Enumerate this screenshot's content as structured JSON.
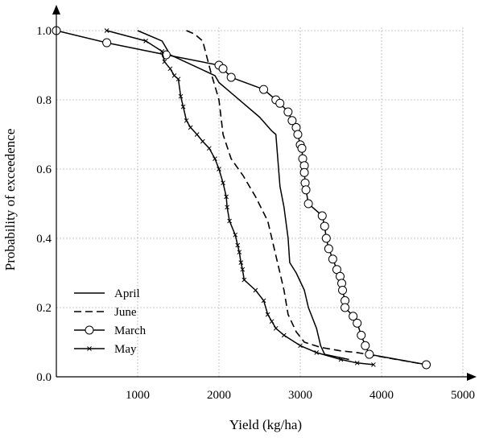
{
  "chart_data": {
    "type": "line",
    "title": "",
    "xlabel": "Yield (kg/ha)",
    "ylabel": "Probability of exceedence",
    "xlim": [
      0,
      5000
    ],
    "ylim": [
      0,
      1.0
    ],
    "x_ticks": [
      "1000",
      "2000",
      "3000",
      "4000",
      "5000"
    ],
    "y_ticks": [
      "0.0",
      "0.2",
      "0.4",
      "0.6",
      "0.8",
      "1.0"
    ],
    "grid": "dotted",
    "legend_position": "bottom-left",
    "series": [
      {
        "name": "April",
        "line_style": "solid",
        "marker": "none",
        "points": [
          [
            1000,
            1.0
          ],
          [
            1300,
            0.97
          ],
          [
            1400,
            0.93
          ],
          [
            1950,
            0.87
          ],
          [
            2000,
            0.85
          ],
          [
            2100,
            0.83
          ],
          [
            2300,
            0.79
          ],
          [
            2500,
            0.75
          ],
          [
            2650,
            0.71
          ],
          [
            2700,
            0.7
          ],
          [
            2750,
            0.55
          ],
          [
            2800,
            0.49
          ],
          [
            2850,
            0.4
          ],
          [
            2870,
            0.33
          ],
          [
            2950,
            0.3
          ],
          [
            3050,
            0.25
          ],
          [
            3100,
            0.2
          ],
          [
            3200,
            0.14
          ],
          [
            3250,
            0.09
          ],
          [
            3300,
            0.065
          ],
          [
            3400,
            0.06
          ],
          [
            3600,
            0.05
          ]
        ]
      },
      {
        "name": "June",
        "line_style": "dashed",
        "marker": "none",
        "points": [
          [
            1600,
            1.0
          ],
          [
            1700,
            0.99
          ],
          [
            1800,
            0.97
          ],
          [
            1900,
            0.88
          ],
          [
            2000,
            0.8
          ],
          [
            2050,
            0.7
          ],
          [
            2150,
            0.63
          ],
          [
            2300,
            0.58
          ],
          [
            2450,
            0.52
          ],
          [
            2600,
            0.45
          ],
          [
            2650,
            0.4
          ],
          [
            2700,
            0.35
          ],
          [
            2750,
            0.3
          ],
          [
            2800,
            0.25
          ],
          [
            2850,
            0.18
          ],
          [
            2950,
            0.13
          ],
          [
            3050,
            0.1
          ],
          [
            3250,
            0.085
          ],
          [
            3500,
            0.075
          ],
          [
            3700,
            0.07
          ],
          [
            4550,
            0.035
          ]
        ]
      },
      {
        "name": "March",
        "line_style": "solid",
        "marker": "circle",
        "points": [
          [
            0,
            1.0
          ],
          [
            620,
            0.965
          ],
          [
            1350,
            0.93
          ],
          [
            2000,
            0.9
          ],
          [
            2050,
            0.89
          ],
          [
            2150,
            0.865
          ],
          [
            2550,
            0.83
          ],
          [
            2700,
            0.8
          ],
          [
            2750,
            0.79
          ],
          [
            2850,
            0.765
          ],
          [
            2900,
            0.74
          ],
          [
            2950,
            0.72
          ],
          [
            2970,
            0.7
          ],
          [
            3000,
            0.67
          ],
          [
            3020,
            0.66
          ],
          [
            3030,
            0.63
          ],
          [
            3050,
            0.61
          ],
          [
            3050,
            0.59
          ],
          [
            3060,
            0.56
          ],
          [
            3070,
            0.54
          ],
          [
            3100,
            0.5
          ],
          [
            3270,
            0.465
          ],
          [
            3300,
            0.435
          ],
          [
            3320,
            0.4
          ],
          [
            3350,
            0.37
          ],
          [
            3400,
            0.34
          ],
          [
            3450,
            0.31
          ],
          [
            3490,
            0.29
          ],
          [
            3510,
            0.27
          ],
          [
            3520,
            0.25
          ],
          [
            3550,
            0.22
          ],
          [
            3550,
            0.2
          ],
          [
            3650,
            0.175
          ],
          [
            3700,
            0.155
          ],
          [
            3750,
            0.12
          ],
          [
            3800,
            0.09
          ],
          [
            3850,
            0.065
          ],
          [
            4550,
            0.035
          ]
        ]
      },
      {
        "name": "May",
        "line_style": "solid",
        "marker": "x",
        "points": [
          [
            620,
            1.0
          ],
          [
            1100,
            0.97
          ],
          [
            1300,
            0.94
          ],
          [
            1330,
            0.91
          ],
          [
            1400,
            0.89
          ],
          [
            1450,
            0.87
          ],
          [
            1500,
            0.86
          ],
          [
            1530,
            0.81
          ],
          [
            1560,
            0.78
          ],
          [
            1600,
            0.74
          ],
          [
            1650,
            0.72
          ],
          [
            1730,
            0.7
          ],
          [
            1800,
            0.68
          ],
          [
            1880,
            0.66
          ],
          [
            1950,
            0.63
          ],
          [
            2000,
            0.6
          ],
          [
            2050,
            0.56
          ],
          [
            2090,
            0.52
          ],
          [
            2100,
            0.49
          ],
          [
            2130,
            0.45
          ],
          [
            2200,
            0.41
          ],
          [
            2230,
            0.38
          ],
          [
            2250,
            0.36
          ],
          [
            2270,
            0.33
          ],
          [
            2290,
            0.31
          ],
          [
            2310,
            0.28
          ],
          [
            2450,
            0.25
          ],
          [
            2550,
            0.22
          ],
          [
            2600,
            0.18
          ],
          [
            2650,
            0.16
          ],
          [
            2700,
            0.14
          ],
          [
            2800,
            0.12
          ],
          [
            3000,
            0.09
          ],
          [
            3200,
            0.07
          ],
          [
            3500,
            0.05
          ],
          [
            3700,
            0.04
          ],
          [
            3900,
            0.035
          ]
        ]
      }
    ]
  }
}
